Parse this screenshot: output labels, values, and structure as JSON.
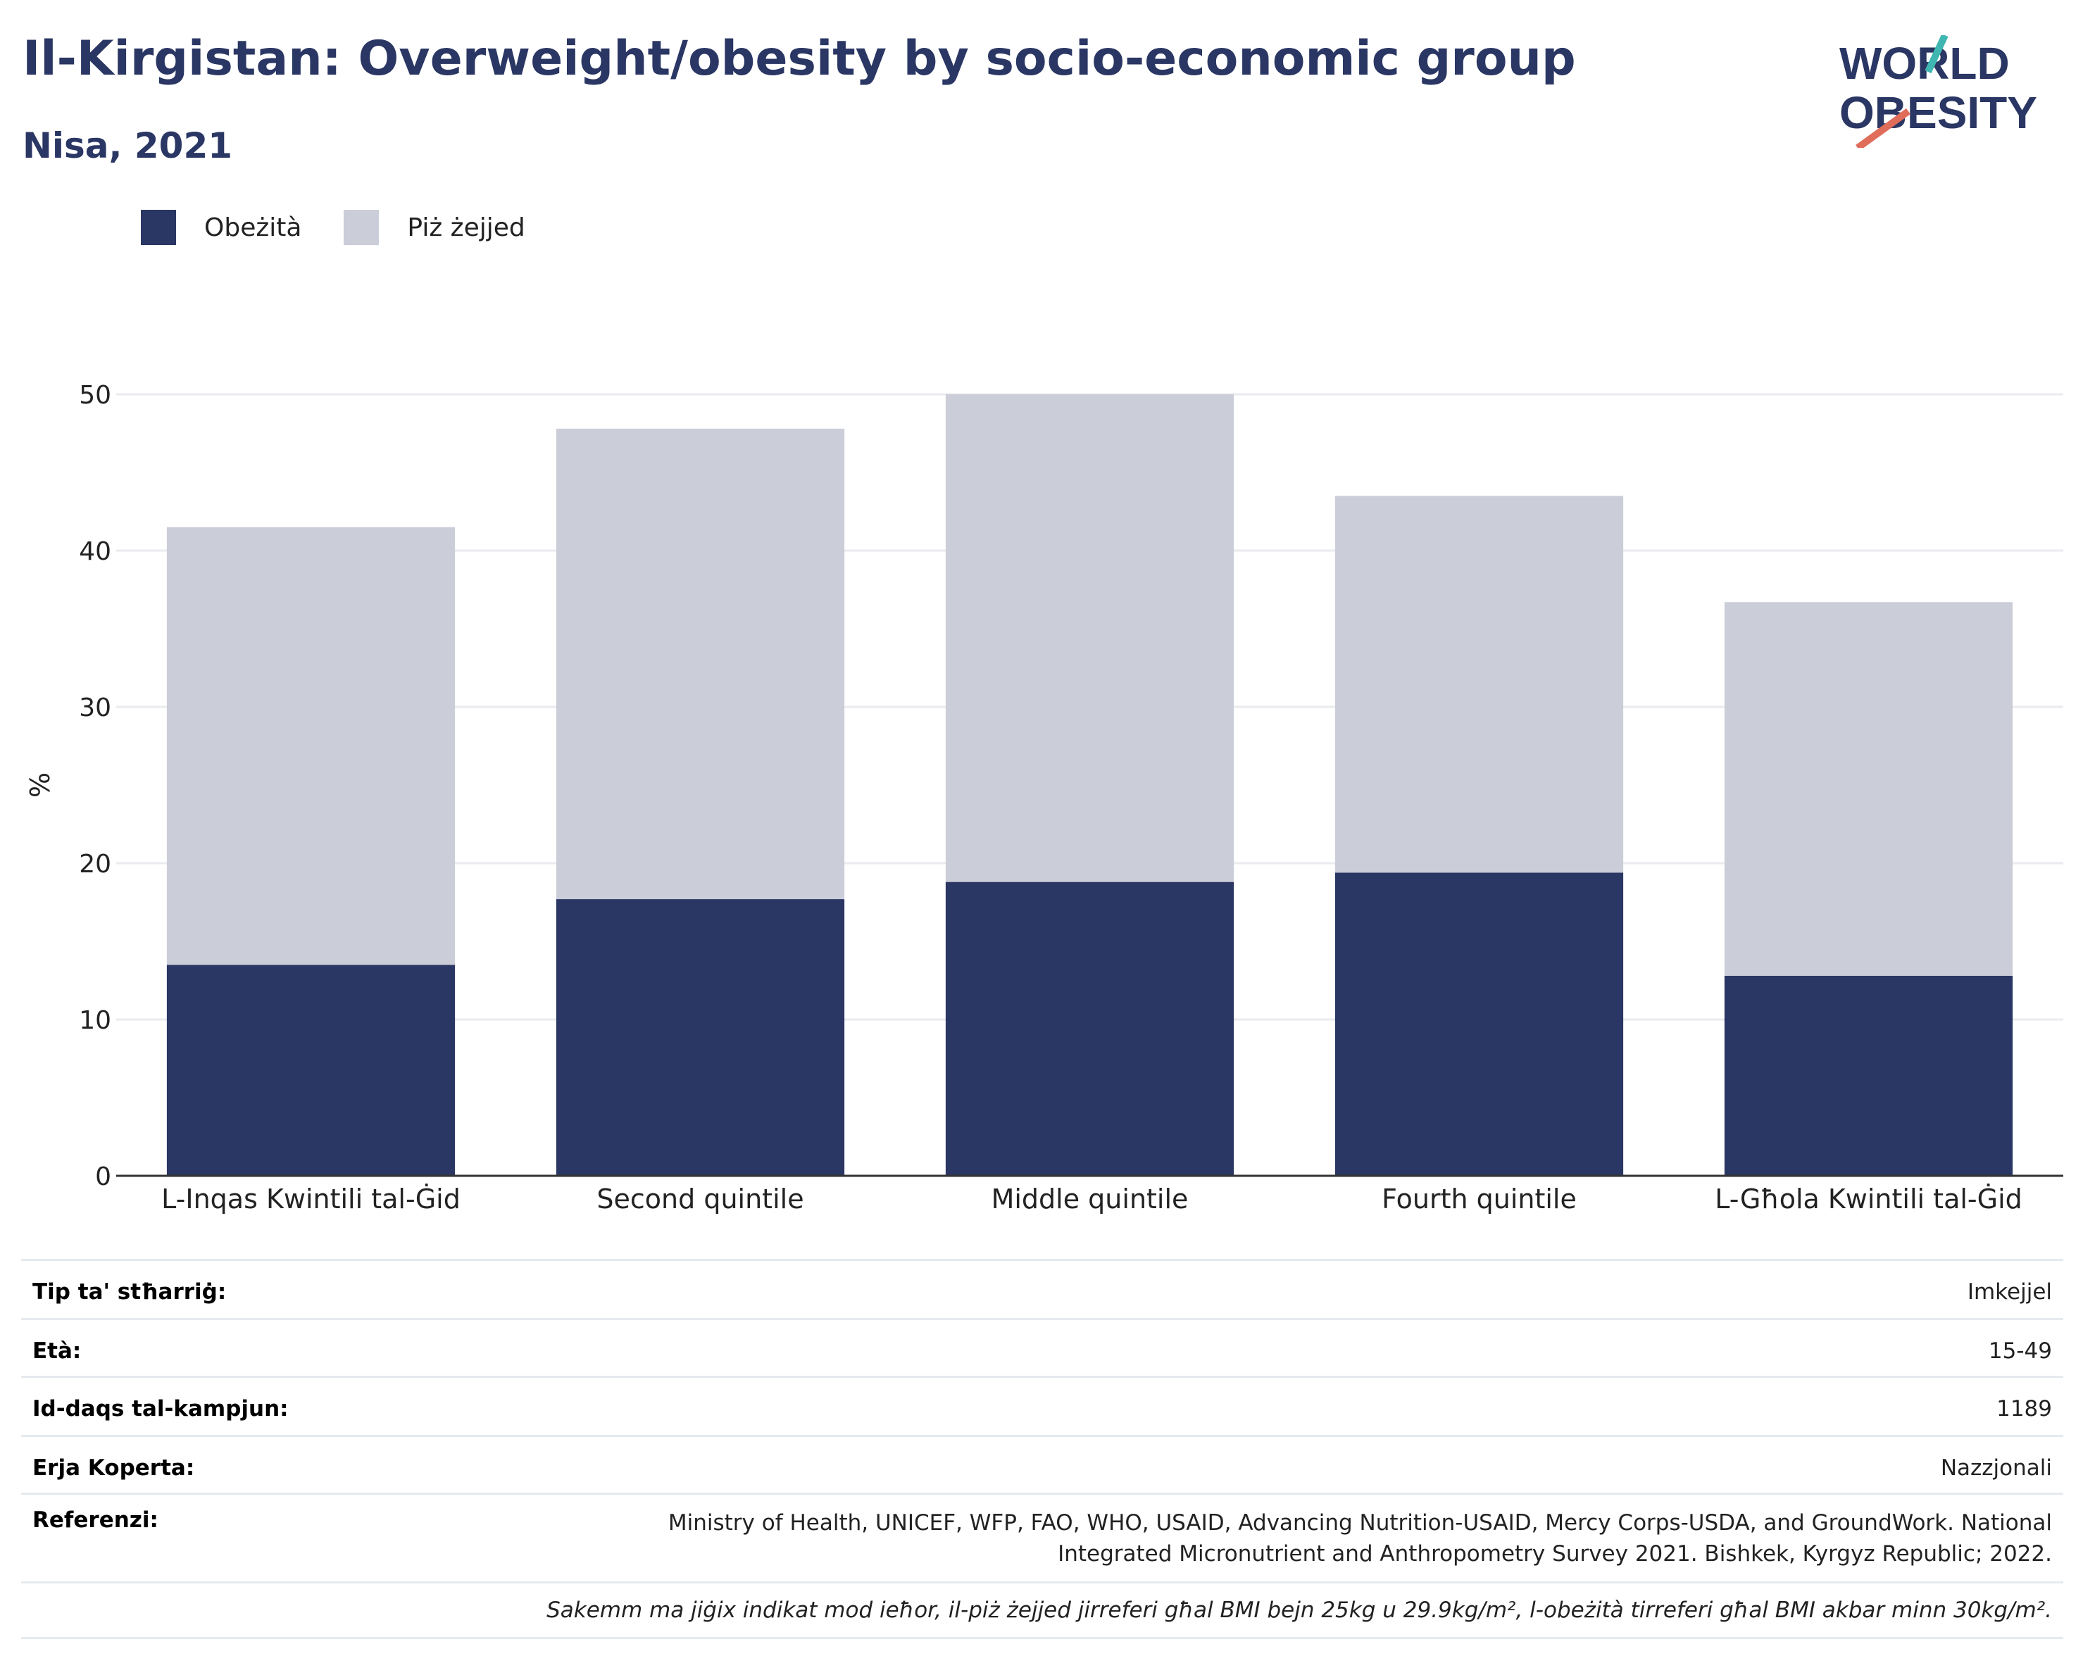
{
  "header": {
    "title": "Il-Kirgistan: Overweight/obesity by socio-economic group",
    "subtitle": "Nisa, 2021"
  },
  "logo": {
    "line1": "WORLD",
    "line2": "OBESITY"
  },
  "colors": {
    "obesity": "#2a3663",
    "overweight": "#cbcdd9",
    "grid": "#e9ebef",
    "axis": "#333333",
    "logo_teal": "#3fb6b2",
    "logo_coral": "#e06c5a"
  },
  "chart_data": {
    "type": "bar",
    "stacked": true,
    "categories": [
      "L-Inqas Kwintili tal-Ġid",
      "Second quintile",
      "Middle quintile",
      "Fourth quintile",
      "L-Għola Kwintili tal-Ġid"
    ],
    "series": [
      {
        "name": "Obeżità",
        "values": [
          13.5,
          17.7,
          18.8,
          19.4,
          12.8
        ]
      },
      {
        "name": "Piż żejjed",
        "values": [
          28.0,
          30.1,
          31.2,
          24.1,
          23.9
        ]
      }
    ],
    "ylabel": "%",
    "ylim": [
      0,
      50
    ],
    "yticks": [
      "0",
      "10",
      "20",
      "30",
      "40",
      "50"
    ],
    "grid": true,
    "legend_position": "top-left"
  },
  "info": [
    {
      "key": "Tip ta' stħarriġ:",
      "value": "Imkejjel"
    },
    {
      "key": "Età:",
      "value": "15-49"
    },
    {
      "key": "Id-daqs tal-kampjun:",
      "value": "1189"
    },
    {
      "key": "Erja Koperta:",
      "value": "Nazzjonali"
    }
  ],
  "references": {
    "key": "Referenzi:",
    "line1": "Ministry of Health, UNICEF, WFP, FAO, WHO, USAID, Advancing Nutrition-USAID, Mercy Corps-USDA, and GroundWork. National",
    "line2": "Integrated Micronutrient and Anthropometry Survey 2021. Bishkek, Kyrgyz Republic; 2022."
  },
  "note": "Sakemm ma jiġix indikat mod ieħor, il-piż żejjed jirreferi għal BMI bejn 25kg u 29.9kg/m², l-obeżità tirreferi għal BMI akbar minn 30kg/m²."
}
